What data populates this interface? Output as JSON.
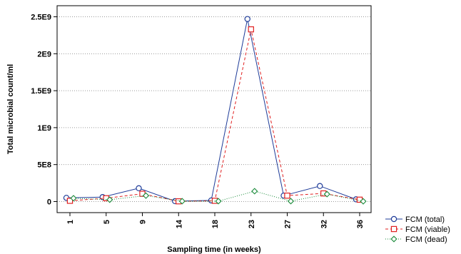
{
  "chart_data": {
    "type": "line",
    "title": "",
    "xlabel": "Sampling time (in weeks)",
    "ylabel": "Total microbial count/ml",
    "categories": [
      "1",
      "5",
      "9",
      "14",
      "18",
      "23",
      "27",
      "32",
      "36"
    ],
    "ylim": [
      -150000000,
      2650000000
    ],
    "yticks": [
      0,
      500000000,
      1000000000,
      1500000000,
      2000000000,
      2500000000
    ],
    "ytick_labels": [
      "0",
      "5E8",
      "1E9",
      "1.5E9",
      "2E9",
      "2.5E9"
    ],
    "grid": "horizontal dotted",
    "legend_position": "bottom-right",
    "series": [
      {
        "name": "FCM (total)",
        "color": "#1f3c99",
        "marker": "circle",
        "line": "solid",
        "values": [
          50000000,
          60000000,
          180000000,
          5000000,
          15000000,
          2470000000,
          80000000,
          210000000,
          30000000
        ]
      },
      {
        "name": "FCM (viable)",
        "color": "#e02020",
        "marker": "square",
        "line": "dashed",
        "values": [
          10000000,
          45000000,
          105000000,
          3000000,
          10000000,
          2330000000,
          80000000,
          110000000,
          25000000
        ]
      },
      {
        "name": "FCM (dead)",
        "color": "#1a8a3a",
        "marker": "diamond",
        "line": "dotted",
        "values": [
          45000000,
          25000000,
          80000000,
          5000000,
          5000000,
          140000000,
          5000000,
          100000000,
          3000000
        ]
      }
    ]
  }
}
